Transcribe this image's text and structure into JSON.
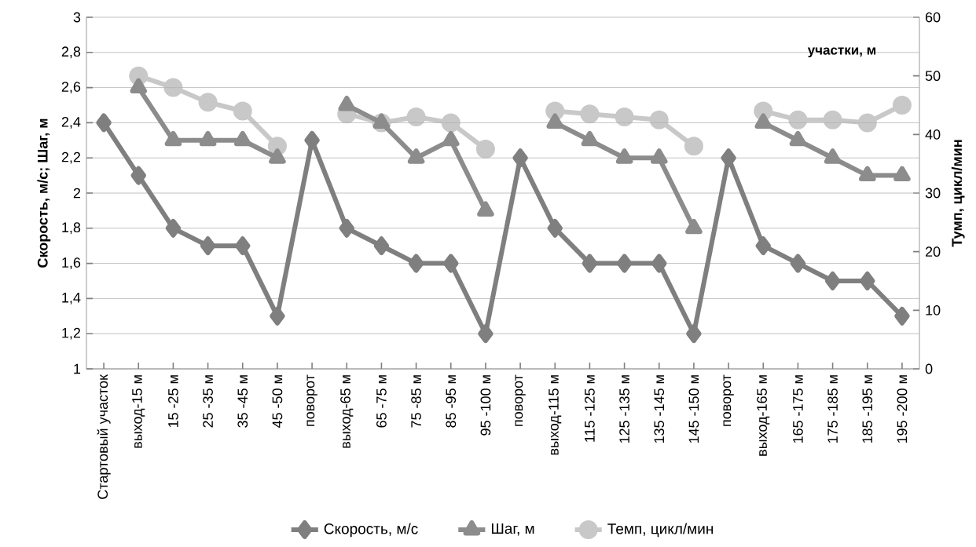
{
  "chart_data": {
    "type": "line",
    "ylabel": "Скорость, м/с; Шаг, м",
    "y2label": "Тумп, цикл/мин",
    "annotations": [
      "участки, м"
    ],
    "categories": [
      "Стартовый участок",
      "выход-15 м",
      "15 -25 м",
      "25 -35 м",
      "35 -45 м",
      "45 -50 м",
      "поворот",
      "выход-65 м",
      "65 -75 м",
      "75 -85 м",
      "85 -95 м",
      "95 -100 м",
      "поворот",
      "выход-115 м",
      "115 -125 м",
      "125 -135 м",
      "135 -145 м",
      "145 -150 м",
      "поворот",
      "выход-165 м",
      "165 -175 м",
      "175 -185 м",
      "185 -195 м",
      "195 -200 м"
    ],
    "series": [
      {
        "name": "Скорость, м/с",
        "color": "#7f7f7f",
        "marker": "diamond",
        "values": [
          2.4,
          2.1,
          1.8,
          1.7,
          1.7,
          1.3,
          2.3,
          1.8,
          1.7,
          1.6,
          1.6,
          1.2,
          2.2,
          1.8,
          1.6,
          1.6,
          1.6,
          1.2,
          2.2,
          1.7,
          1.6,
          1.5,
          1.5,
          1.3
        ]
      },
      {
        "name": "Шаг, м",
        "color": "#8c8c8c",
        "marker": "triangle",
        "values": [
          null,
          2.6,
          2.3,
          2.3,
          2.3,
          2.2,
          null,
          2.5,
          2.4,
          2.2,
          2.3,
          1.9,
          null,
          2.4,
          2.3,
          2.2,
          2.2,
          1.8,
          null,
          2.4,
          2.3,
          2.2,
          2.1,
          2.1
        ]
      },
      {
        "name": "Темп, цикл/мин",
        "color": "#c8c8c8",
        "marker": "circle",
        "axis": "y2",
        "values": [
          null,
          50,
          48,
          45.5,
          44,
          38,
          null,
          43.5,
          42,
          43,
          42,
          37.5,
          null,
          44,
          43.5,
          43,
          42.5,
          38,
          null,
          44,
          42.5,
          42.5,
          42,
          45
        ]
      }
    ],
    "ylim": [
      1,
      3
    ],
    "yticks": [
      1,
      {
        "value": 1.2,
        "label": "1,2"
      },
      {
        "value": 1.4,
        "label": "1,4"
      },
      {
        "value": 1.6,
        "label": "1,6"
      },
      {
        "value": 1.8,
        "label": "1,8"
      },
      2,
      {
        "value": 2.2,
        "label": "2,2"
      },
      {
        "value": 2.4,
        "label": "2,4"
      },
      {
        "value": 2.6,
        "label": "2,6"
      },
      {
        "value": 2.8,
        "label": "2,8"
      },
      3
    ],
    "y2lim": [
      0,
      60
    ],
    "y2ticks": [
      0,
      10,
      20,
      30,
      40,
      50,
      60
    ],
    "grid": "y",
    "legend": "bottom",
    "line_style": "solid"
  }
}
